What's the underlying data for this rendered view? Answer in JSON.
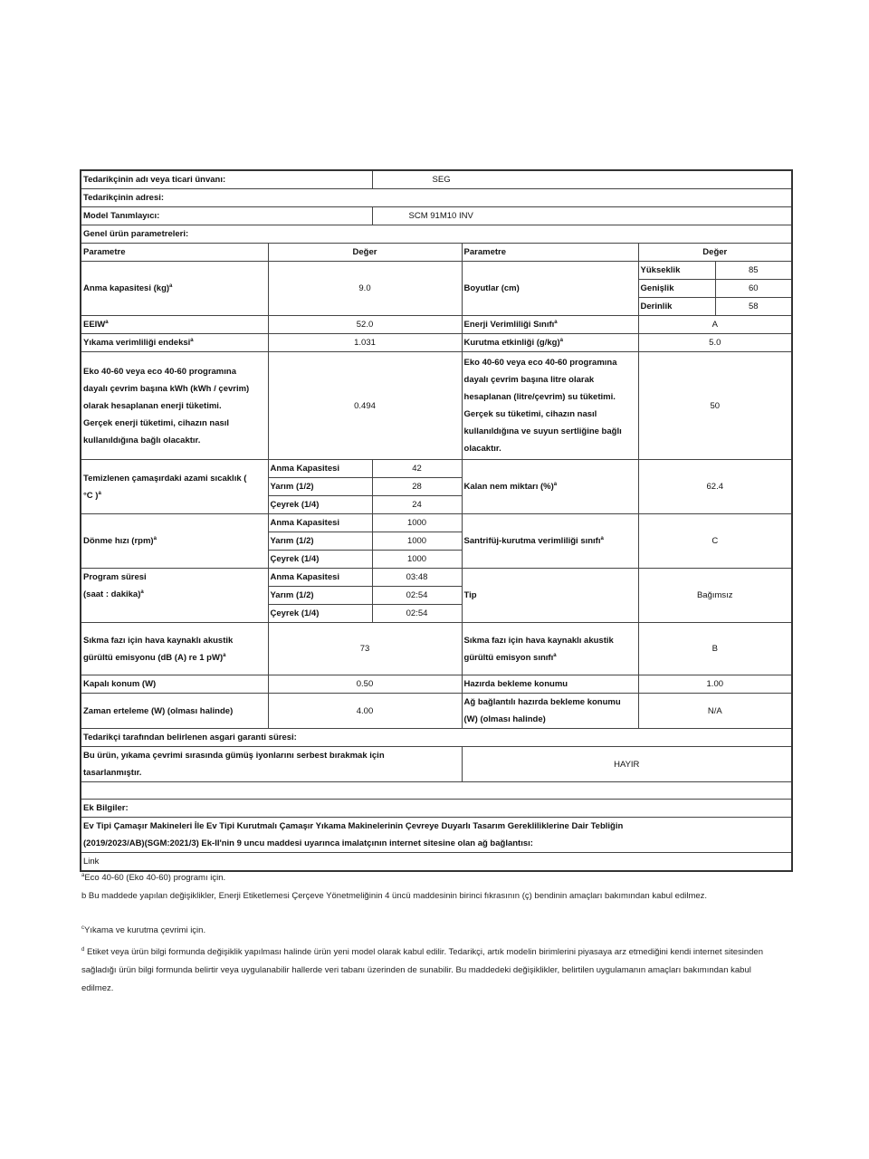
{
  "supplier": {
    "name_label": "Tedarikçinin adı veya ticari ünvanı:",
    "name_value": "SEG",
    "address_label": "Tedarikçinin adresi:",
    "model_label": "Model Tanımlayıcı:",
    "model_value": "SCM 91M10 INV",
    "general_label": "Genel ürün parametreleri:"
  },
  "header": {
    "param": "Parametre",
    "value": "Değer",
    "param2": "Parametre",
    "value2": "Değer"
  },
  "sup_a": "a",
  "rows": {
    "capacity": {
      "label": "Anma kapasitesi (kg)",
      "value": "9.0"
    },
    "dimensions": {
      "label": "Boyutlar (cm)",
      "height_label": "Yükseklik",
      "height": "85",
      "width_label": "Genişlik",
      "width": "60",
      "depth_label": "Derinlik",
      "depth": "58"
    },
    "eeiw": {
      "label": "EEIW",
      "value": "52.0"
    },
    "energy_class": {
      "label": "Enerji Verimliliği Sınıfı",
      "value": "A"
    },
    "wash_index": {
      "label": "Yıkama verimliliği endeksi",
      "value": "1.031"
    },
    "drying": {
      "label": "Kurutma etkinliği (g/kg)",
      "value": "5.0"
    },
    "energy": {
      "lines": [
        "Eko 40-60 veya eco 40-60 programına",
        "dayalı çevrim başına kWh (kWh / çevrim)",
        "olarak hesaplanan enerji tüketimi.",
        "Gerçek enerji tüketimi, cihazın nasıl",
        "kullanıldığına bağlı olacaktır."
      ],
      "value": "0.494"
    },
    "water": {
      "lines": [
        "Eko 40-60 veya eco 40-60 programına",
        "dayalı çevrim başına litre olarak",
        "hesaplanan (litre/çevrim) su tüketimi.",
        "Gerçek su tüketimi, cihazın nasıl",
        "kullanıldığına ve suyun sertliğine bağlı",
        "olacaktır."
      ],
      "value": "50"
    },
    "temperature": {
      "label1": "Temizlenen çamaşırdaki azami sıcaklık (",
      "label2": "°C )",
      "full_label": "Anma Kapasitesi",
      "full": "42",
      "half_label": "Yarım (1/2)",
      "half": "28",
      "quarter_label": "Çeyrek (1/4)",
      "quarter": "24"
    },
    "moisture": {
      "label": "Kalan nem miktarı (%)",
      "value": "62.4"
    },
    "spin": {
      "label": "Dönme hızı (rpm)",
      "full_label": "Anma Kapasitesi",
      "full": "1000",
      "half_label": "Yarım (1/2)",
      "half": "1000",
      "quarter_label": "Çeyrek (1/4)",
      "quarter": "1000"
    },
    "spin_class": {
      "label": "Santrifüj-kurutma verimliliği sınıfı",
      "value": "C"
    },
    "duration": {
      "label1": "Program süresi",
      "label2": "(saat : dakika)",
      "full_label": "Anma Kapasitesi",
      "full": "03:48",
      "half_label": "Yarım (1/2)",
      "half": "02:54",
      "quarter_label": "Çeyrek (1/4)",
      "quarter": "02:54"
    },
    "type": {
      "label": "Tip",
      "value": "Bağımsız"
    },
    "noise": {
      "label1": "Sıkma fazı için hava kaynaklı akustik",
      "label2": "gürültü emisyonu (dB (A) re 1 pW)",
      "value": "73"
    },
    "noise_class": {
      "label1": "Sıkma fazı için hava kaynaklı akustik",
      "label2": "gürültü emisyon sınıfı",
      "value": "B"
    },
    "off_mode": {
      "label": "Kapalı konum (W)",
      "value": "0.50"
    },
    "standby": {
      "label": "Hazırda bekleme konumu",
      "value": "1.00"
    },
    "delay": {
      "label": "Zaman erteleme (W) (olması halinde)",
      "value": "4.00"
    },
    "network_standby": {
      "label1": "Ağ bağlantılı hazırda bekleme konumu",
      "label2": "(W) (olması halinde)",
      "value": "N/A"
    },
    "warranty": {
      "label": "Tedarikçi tarafından belirlenen asgari garanti süresi:"
    },
    "silver": {
      "label1": "Bu ürün, yıkama çevrimi sırasında gümüş iyonlarını serbest bırakmak için",
      "label2": "tasarlanmıştır.",
      "value": "HAYIR"
    },
    "extra": {
      "label": "Ek Bilgiler:"
    },
    "regulation": {
      "line1": "Ev Tipi Çamaşır Makineleri İle Ev Tipi Kurutmalı Çamaşır Yıkama Makinelerinin Çevreye Duyarlı Tasarım Gerekliliklerine Dair Tebliğin",
      "line2": "(2019/2023/AB)(SGM:2021/3) Ek-II'nin 9 uncu maddesi uyarınca imalatçının internet sitesine olan ağ bağlantısı:"
    },
    "link": {
      "label": "Link"
    }
  },
  "notes": {
    "a_sup": "a",
    "a": "Eco 40-60 (Eko 40-60) programı için.",
    "b": "b Bu maddede yapılan değişiklikler, Enerji Etiketlemesi Çerçeve Yönetmeliğinin 4 üncü maddesinin birinci fıkrasının (ç) bendinin amaçları bakımından kabul edilmez.",
    "c_sup": "c",
    "c": "Yıkama ve kurutma çevrimi için.",
    "d_sup": "d",
    "d": " Etiket veya ürün bilgi formunda değişiklik yapılması halinde ürün yeni model olarak kabul edilir. Tedarikçi, artık modelin birimlerini piyasaya arz etmediğini kendi internet sitesinden sağladığı ürün bilgi formunda belirtir veya uygulanabilir hallerde veri tabanı üzerinden de sunabilir. Bu maddedeki değişiklikler, belirtilen uygulamanın amaçları bakımından kabul edilmez."
  }
}
